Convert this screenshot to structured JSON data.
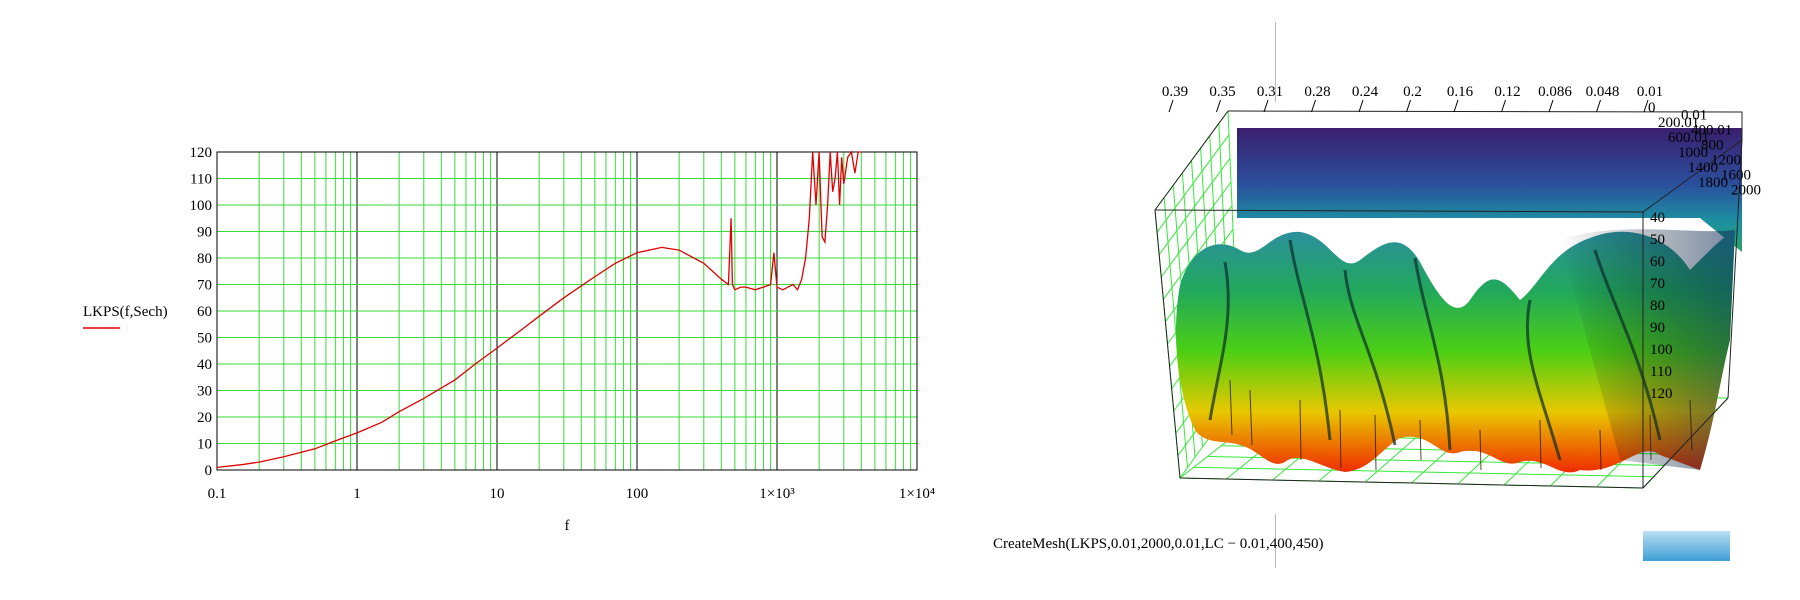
{
  "chart_data": [
    {
      "type": "line",
      "xscale": "log",
      "xlim": [
        0.1,
        10000
      ],
      "ylim": [
        0,
        120
      ],
      "xlabel": "f",
      "ylabel": "LKPS(f,Sech)",
      "grid": true,
      "x_ticks": [
        "0.1",
        "1",
        "10",
        "100",
        "1×10³",
        "1×10⁴"
      ],
      "y_ticks": [
        "0",
        "10",
        "20",
        "30",
        "40",
        "50",
        "60",
        "70",
        "80",
        "90",
        "100",
        "110",
        "120"
      ],
      "series": [
        {
          "name": "LKPS(f,Sech)",
          "color": "#e00000",
          "x": [
            0.1,
            0.15,
            0.2,
            0.3,
            0.5,
            0.7,
            1,
            1.5,
            2,
            3,
            5,
            7,
            10,
            15,
            20,
            30,
            50,
            70,
            100,
            150,
            200,
            300,
            400,
            450,
            470,
            480,
            500,
            550,
            600,
            700,
            800,
            900,
            950,
            1000,
            1100,
            1200,
            1300,
            1400,
            1500,
            1600,
            1700,
            1800,
            1900,
            2000,
            2100,
            2200,
            2300,
            2400,
            2500,
            2600,
            2700,
            2800,
            2900,
            3000,
            3200,
            3400,
            3600,
            3800,
            4000
          ],
          "y": [
            1,
            2,
            3,
            5,
            8,
            11,
            14,
            18,
            22,
            27,
            34,
            40,
            46,
            53,
            58,
            65,
            73,
            78,
            82,
            84,
            83,
            78,
            72,
            70,
            95,
            70,
            68,
            69,
            69,
            68,
            69,
            70,
            82,
            69,
            68,
            69,
            70,
            68,
            72,
            80,
            95,
            125,
            100,
            120,
            88,
            86,
            100,
            125,
            105,
            110,
            125,
            100,
            118,
            108,
            118,
            125,
            112,
            125,
            125
          ]
        }
      ]
    },
    {
      "type": "surface",
      "axis_top_ticks": [
        "0.39",
        "0.35",
        "0.31",
        "0.28",
        "0.24",
        "0.2",
        "0.16",
        "0.12",
        "0.086",
        "0.048",
        "0.01"
      ],
      "axis_right_top_ticks": [
        "0",
        "0.01",
        "200.01",
        "400.01",
        "600.01",
        "800",
        "1000",
        "1200",
        "1400",
        "1600",
        "1800",
        "2000"
      ],
      "axis_right_ticks": [
        "40",
        "50",
        "60",
        "70",
        "80",
        "90",
        "100",
        "110",
        "120"
      ]
    }
  ],
  "mesh_expression": "CreateMesh(LKPS,0.01,2000,0.01,LC − 0.01,400,450)"
}
